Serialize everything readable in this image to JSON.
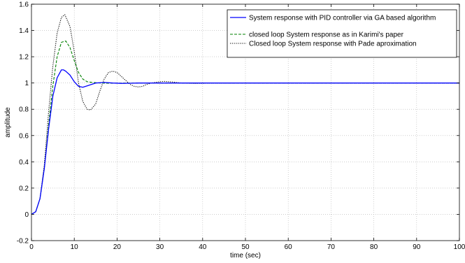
{
  "chart_data": {
    "type": "line",
    "title": "",
    "xlabel": "time (sec)",
    "ylabel": "amplitude",
    "xlim": [
      0,
      100
    ],
    "ylim": [
      -0.2,
      1.6
    ],
    "x_ticks": [
      0,
      10,
      20,
      30,
      40,
      50,
      60,
      70,
      80,
      90,
      100
    ],
    "y_ticks": [
      -0.2,
      0,
      0.2,
      0.4,
      0.6,
      0.8,
      1,
      1.2,
      1.4,
      1.6
    ],
    "grid": true,
    "legend_position": "top-right",
    "series": [
      {
        "name": "System response with PID controller via GA based algorithm",
        "color": "#0000ff",
        "style": "solid",
        "x": [
          0,
          1,
          2,
          3,
          4,
          5,
          6,
          7,
          7.5,
          8,
          9,
          10,
          11,
          12,
          13,
          15,
          17,
          19,
          21,
          23,
          25,
          30,
          40,
          60,
          80,
          100
        ],
        "y": [
          0,
          0.02,
          0.12,
          0.35,
          0.65,
          0.9,
          1.04,
          1.1,
          1.1,
          1.09,
          1.06,
          1.01,
          0.975,
          0.968,
          0.978,
          1.0,
          1.004,
          1.0,
          0.997,
          0.998,
          1.0,
          1.0,
          1.0,
          1.0,
          1.0,
          1.0
        ]
      },
      {
        "name": "closed loop System response as in Karimi's paper",
        "color": "#008000",
        "style": "dashed",
        "x": [
          0,
          1,
          2,
          3,
          4,
          5,
          6,
          7,
          8,
          9,
          10,
          11,
          12,
          13,
          14,
          16,
          18,
          20,
          25,
          30,
          40,
          60,
          80,
          100
        ],
        "y": [
          0,
          0.02,
          0.12,
          0.35,
          0.68,
          0.98,
          1.2,
          1.31,
          1.32,
          1.27,
          1.17,
          1.08,
          1.03,
          1.01,
          1.005,
          1.0,
          0.998,
          0.999,
          1.0,
          1.0,
          1.0,
          1.0,
          1.0,
          1.0
        ]
      },
      {
        "name": "Closed loop System response with Pade aproximation",
        "color": "#000000",
        "style": "dotted",
        "x": [
          0,
          1,
          2,
          3,
          4,
          5,
          6,
          7,
          7.8,
          9,
          10,
          11,
          12,
          13,
          13.8,
          15,
          16,
          17,
          18,
          19,
          20,
          21,
          22,
          23,
          24,
          25,
          26,
          27,
          28,
          30,
          31,
          33,
          35,
          38,
          42,
          50,
          60,
          80,
          100
        ],
        "y": [
          0,
          0.02,
          0.12,
          0.38,
          0.78,
          1.13,
          1.38,
          1.5,
          1.52,
          1.43,
          1.24,
          1.0,
          0.86,
          0.8,
          0.795,
          0.84,
          0.94,
          1.03,
          1.08,
          1.09,
          1.08,
          1.05,
          1.02,
          0.99,
          0.975,
          0.97,
          0.975,
          0.99,
          1.0,
          1.01,
          1.012,
          1.008,
          1.0,
          0.997,
          0.999,
          1.0,
          1.0,
          1.0,
          1.0
        ]
      }
    ]
  }
}
